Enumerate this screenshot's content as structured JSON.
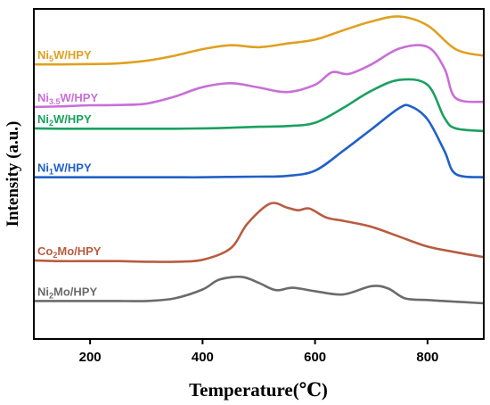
{
  "chart_data": {
    "type": "line",
    "title": "",
    "xlabel": "Temperature(℃)",
    "ylabel": "Intensity (a.u.)",
    "xlim": [
      100,
      900
    ],
    "xticks": [
      200,
      400,
      600,
      800
    ],
    "ylim": [
      0,
      1
    ],
    "y_ticks_shown": false,
    "grid": false,
    "legend": "inline labels at left",
    "series": [
      {
        "name": "Ni5W/HPY",
        "label_main": "Ni",
        "label_sub": "5",
        "label_rest": "W/HPY",
        "color": "#E0A020",
        "x": [
          100,
          150,
          200,
          250,
          300,
          350,
          400,
          450,
          500,
          550,
          600,
          650,
          700,
          750,
          800,
          850,
          900
        ],
        "y": [
          0.832,
          0.832,
          0.833,
          0.835,
          0.843,
          0.858,
          0.878,
          0.89,
          0.884,
          0.895,
          0.907,
          0.935,
          0.962,
          0.977,
          0.95,
          0.878,
          0.858
        ]
      },
      {
        "name": "Ni3.5W/HPY",
        "label_main": "Ni",
        "label_sub": "3.5",
        "label_rest": "W/HPY",
        "color": "#C86FD8",
        "x": [
          100,
          150,
          200,
          250,
          300,
          350,
          400,
          450,
          500,
          550,
          600,
          630,
          660,
          700,
          750,
          800,
          830,
          850,
          900
        ],
        "y": [
          0.703,
          0.705,
          0.708,
          0.709,
          0.713,
          0.734,
          0.763,
          0.775,
          0.762,
          0.748,
          0.77,
          0.808,
          0.803,
          0.832,
          0.88,
          0.885,
          0.82,
          0.73,
          0.718
        ]
      },
      {
        "name": "Ni2W/HPY",
        "label_main": "Ni",
        "label_sub": "2",
        "label_rest": "W/HPY",
        "color": "#1AA060",
        "x": [
          100,
          150,
          200,
          250,
          300,
          350,
          400,
          450,
          500,
          550,
          600,
          650,
          700,
          750,
          800,
          830,
          850,
          900
        ],
        "y": [
          0.638,
          0.637,
          0.637,
          0.637,
          0.637,
          0.637,
          0.638,
          0.64,
          0.643,
          0.645,
          0.655,
          0.7,
          0.752,
          0.785,
          0.77,
          0.67,
          0.638,
          0.63
        ]
      },
      {
        "name": "Ni1W/HPY",
        "label_main": "Ni",
        "label_sub": "1",
        "label_rest": "W/HPY",
        "color": "#2060C8",
        "x": [
          100,
          150,
          200,
          250,
          300,
          350,
          400,
          450,
          500,
          550,
          600,
          650,
          700,
          750,
          770,
          800,
          830,
          850,
          900
        ],
        "y": [
          0.49,
          0.49,
          0.49,
          0.49,
          0.49,
          0.49,
          0.49,
          0.491,
          0.492,
          0.494,
          0.51,
          0.57,
          0.635,
          0.7,
          0.705,
          0.665,
          0.57,
          0.5,
          0.49
        ]
      },
      {
        "name": "Co2Mo/HPY",
        "label_main": "Co",
        "label_sub": "2",
        "label_rest": "Mo/HPY",
        "color": "#B85C40",
        "x": [
          100,
          150,
          200,
          250,
          300,
          350,
          400,
          450,
          480,
          520,
          550,
          570,
          590,
          620,
          650,
          700,
          750,
          800,
          850,
          900
        ],
        "y": [
          0.238,
          0.236,
          0.236,
          0.236,
          0.234,
          0.234,
          0.24,
          0.275,
          0.35,
          0.41,
          0.398,
          0.39,
          0.395,
          0.368,
          0.358,
          0.34,
          0.31,
          0.28,
          0.263,
          0.248
        ]
      },
      {
        "name": "Ni2Mo/HPY",
        "label_main": "Ni",
        "label_sub": "2",
        "label_rest": "Mo/HPY",
        "color": "#6B6B6B",
        "x": [
          100,
          150,
          200,
          250,
          300,
          350,
          400,
          430,
          470,
          500,
          530,
          560,
          600,
          650,
          700,
          730,
          760,
          800,
          850,
          900
        ],
        "y": [
          0.115,
          0.115,
          0.115,
          0.115,
          0.115,
          0.123,
          0.15,
          0.18,
          0.188,
          0.17,
          0.148,
          0.155,
          0.145,
          0.135,
          0.16,
          0.153,
          0.123,
          0.118,
          0.113,
          0.108
        ]
      }
    ]
  }
}
